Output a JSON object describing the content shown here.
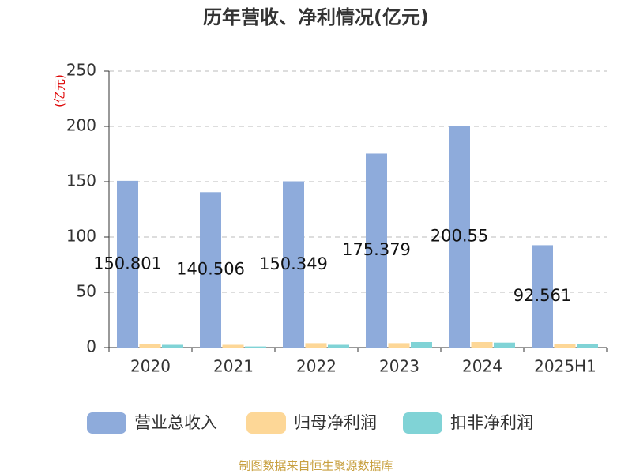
{
  "chart_data": {
    "type": "bar",
    "title": "历年营收、净利情况(亿元)",
    "y_label": "(亿元)",
    "categories": [
      "2020",
      "2021",
      "2022",
      "2023",
      "2024",
      "2025H1"
    ],
    "series": [
      {
        "name": "营业总收入",
        "color": "#8eabdb",
        "values": [
          150.801,
          140.506,
          150.349,
          175.379,
          200.55,
          92.561
        ],
        "show_labels": true
      },
      {
        "name": "归母净利润",
        "color": "#fdd797",
        "values": [
          3.5,
          2.5,
          4,
          4,
          5,
          3.5
        ]
      },
      {
        "name": "扣非净利润",
        "color": "#80d3d6",
        "values": [
          2.5,
          1,
          2.5,
          5,
          4.5,
          3
        ]
      }
    ],
    "ylim": [
      0,
      250
    ],
    "yticks": [
      0,
      50,
      100,
      150,
      200,
      250
    ],
    "grid": true,
    "legend": "bottom",
    "source": "制图数据来自恒生聚源数据库"
  }
}
